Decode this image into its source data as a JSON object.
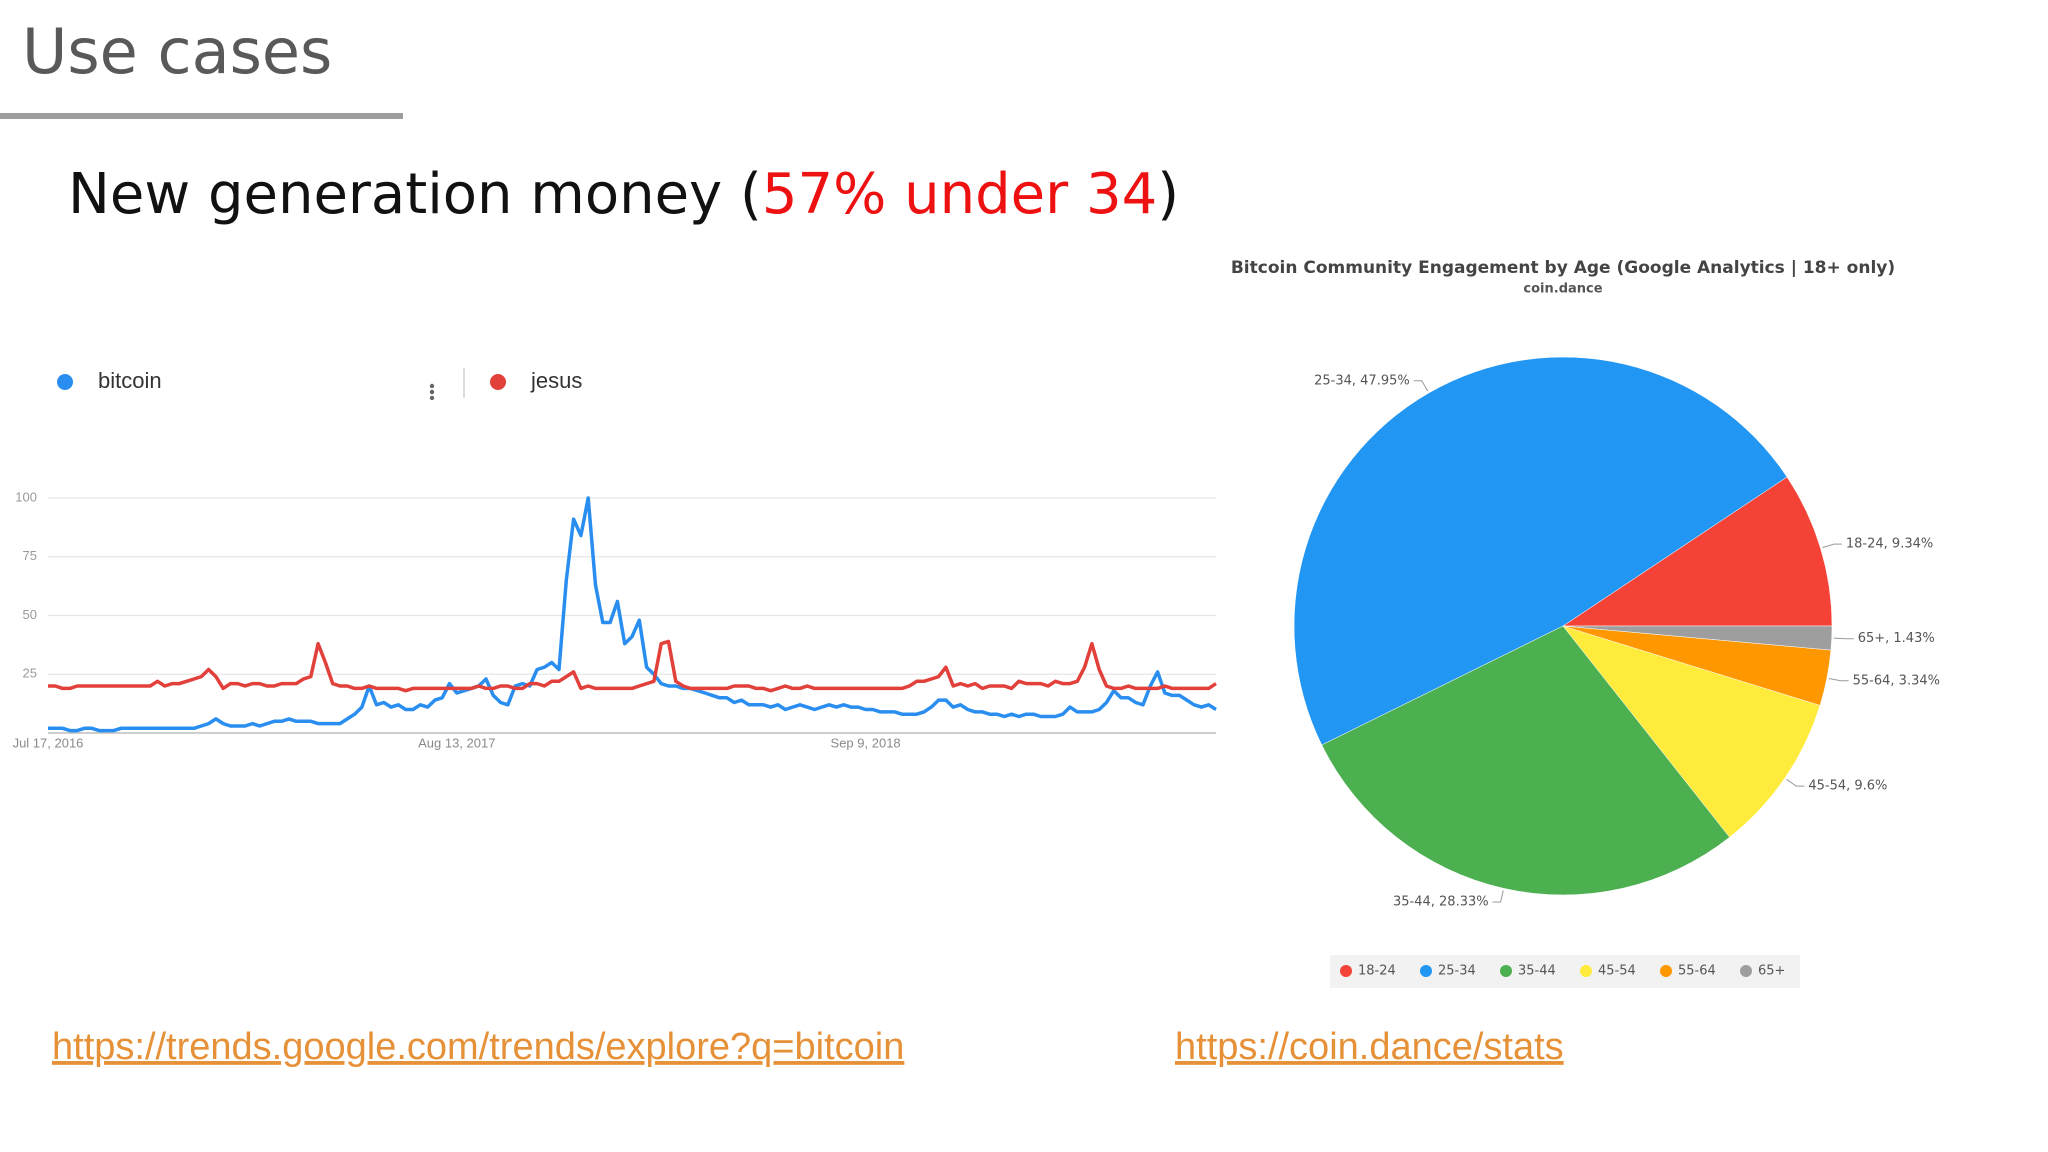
{
  "slide": {
    "title": "Use cases",
    "subtitle": {
      "text": "New generation money (",
      "highlight": "57% under 34",
      "end": ")"
    },
    "links": [
      "https://trends.google.com/trends/explore?q=bitcoin",
      "https://coin.dance/stats"
    ]
  },
  "chart_data": [
    {
      "type": "line",
      "categories": [
        "Jul 17, 2016",
        null,
        null,
        null,
        null,
        null,
        null,
        null,
        null,
        null,
        null,
        null,
        null,
        null,
        null,
        null,
        null,
        null,
        null,
        null,
        null,
        null,
        null,
        null,
        null,
        null,
        null,
        null,
        null,
        null,
        null,
        null,
        null,
        null,
        null,
        null,
        null,
        null,
        null,
        null,
        null,
        null,
        null,
        null,
        null,
        null,
        null,
        null,
        null,
        null,
        null,
        null,
        null,
        null,
        null,
        null,
        "Aug 13, 2017",
        null,
        null,
        null,
        null,
        null,
        null,
        null,
        null,
        null,
        null,
        null,
        null,
        null,
        null,
        null,
        null,
        null,
        null,
        null,
        null,
        null,
        null,
        null,
        null,
        null,
        null,
        null,
        null,
        null,
        null,
        null,
        null,
        null,
        null,
        null,
        null,
        null,
        null,
        null,
        null,
        null,
        null,
        null,
        null,
        null,
        null,
        null,
        null,
        null,
        null,
        null,
        null,
        null,
        null,
        null,
        "Sep 9, 2018",
        null,
        null,
        null,
        null,
        null,
        null,
        null,
        null,
        null,
        null,
        null,
        null,
        null,
        null,
        null,
        null,
        null,
        null,
        null,
        null,
        null,
        null,
        null,
        null,
        null,
        null,
        null,
        null,
        null,
        null,
        null,
        null,
        null,
        null,
        null,
        null,
        null,
        null,
        null,
        null,
        null,
        null,
        null,
        null,
        null,
        null,
        null,
        null
      ],
      "series": [
        {
          "name": "bitcoin",
          "color": "#2a8ef0",
          "values": [
            2,
            2,
            2,
            1,
            1,
            2,
            2,
            1,
            1,
            1,
            2,
            2,
            2,
            2,
            2,
            2,
            2,
            2,
            2,
            2,
            2,
            3,
            4,
            6,
            4,
            3,
            3,
            3,
            4,
            3,
            4,
            5,
            5,
            6,
            5,
            5,
            5,
            4,
            4,
            4,
            4,
            6,
            8,
            11,
            20,
            12,
            13,
            11,
            12,
            10,
            10,
            12,
            11,
            14,
            15,
            21,
            17,
            18,
            19,
            20,
            23,
            16,
            13,
            12,
            20,
            21,
            20,
            27,
            28,
            30,
            27,
            65,
            91,
            84,
            100,
            63,
            47,
            47,
            56,
            38,
            41,
            48,
            28,
            25,
            21,
            20,
            20,
            19,
            19,
            18,
            17,
            16,
            15,
            15,
            13,
            14,
            12,
            12,
            12,
            11,
            12,
            10,
            11,
            12,
            11,
            10,
            11,
            12,
            11,
            12,
            11,
            11,
            10,
            10,
            9,
            9,
            9,
            8,
            8,
            8,
            9,
            11,
            14,
            14,
            11,
            12,
            10,
            9,
            9,
            8,
            8,
            7,
            8,
            7,
            8,
            8,
            7,
            7,
            7,
            8,
            11,
            9,
            9,
            9,
            10,
            13,
            18,
            15,
            15,
            13,
            12,
            20,
            26,
            17,
            16,
            16,
            14,
            12,
            11,
            12,
            10
          ]
        },
        {
          "name": "jesus",
          "color": "#e2403a",
          "values": [
            20,
            20,
            19,
            19,
            20,
            20,
            20,
            20,
            20,
            20,
            20,
            20,
            20,
            20,
            20,
            22,
            20,
            21,
            21,
            22,
            23,
            24,
            27,
            24,
            19,
            21,
            21,
            20,
            21,
            21,
            20,
            20,
            21,
            21,
            21,
            23,
            24,
            38,
            30,
            21,
            20,
            20,
            19,
            19,
            20,
            19,
            19,
            19,
            19,
            18,
            19,
            19,
            19,
            19,
            19,
            19,
            19,
            19,
            19,
            20,
            19,
            19,
            20,
            20,
            19,
            19,
            21,
            21,
            20,
            22,
            22,
            24,
            26,
            19,
            20,
            19,
            19,
            19,
            19,
            19,
            19,
            20,
            21,
            22,
            38,
            39,
            22,
            20,
            19,
            19,
            19,
            19,
            19,
            19,
            20,
            20,
            20,
            19,
            19,
            18,
            19,
            20,
            19,
            19,
            20,
            19,
            19,
            19,
            19,
            19,
            19,
            19,
            19,
            19,
            19,
            19,
            19,
            19,
            20,
            22,
            22,
            23,
            24,
            28,
            20,
            21,
            20,
            21,
            19,
            20,
            20,
            20,
            19,
            22,
            21,
            21,
            21,
            20,
            22,
            21,
            21,
            22,
            28,
            38,
            27,
            20,
            19,
            19,
            20,
            19,
            19,
            19,
            19,
            20,
            19,
            19,
            19,
            19,
            19,
            19,
            21
          ]
        }
      ],
      "ylim": [
        0,
        100
      ],
      "yticks": [
        25,
        50,
        75,
        100
      ],
      "grid": true
    },
    {
      "type": "pie",
      "title": "Bitcoin Community Engagement by Age (Google Analytics | 18+ only)",
      "subtitle": "coin.dance",
      "categories": [
        "18-24",
        "25-34",
        "35-44",
        "45-54",
        "55-64",
        "65+"
      ],
      "values": [
        9.34,
        47.95,
        28.33,
        9.6,
        3.34,
        1.43
      ],
      "value_labels": [
        "18-24, 9.34%",
        "25-34, 47.95%",
        "35-44, 28.33%",
        "45-54, 9.6%",
        "55-64, 3.34%",
        "65+, 1.43%"
      ],
      "colors": [
        "#f44336",
        "#2196f3",
        "#4caf50",
        "#ffeb3b",
        "#ff9800",
        "#9e9e9e"
      ]
    }
  ]
}
